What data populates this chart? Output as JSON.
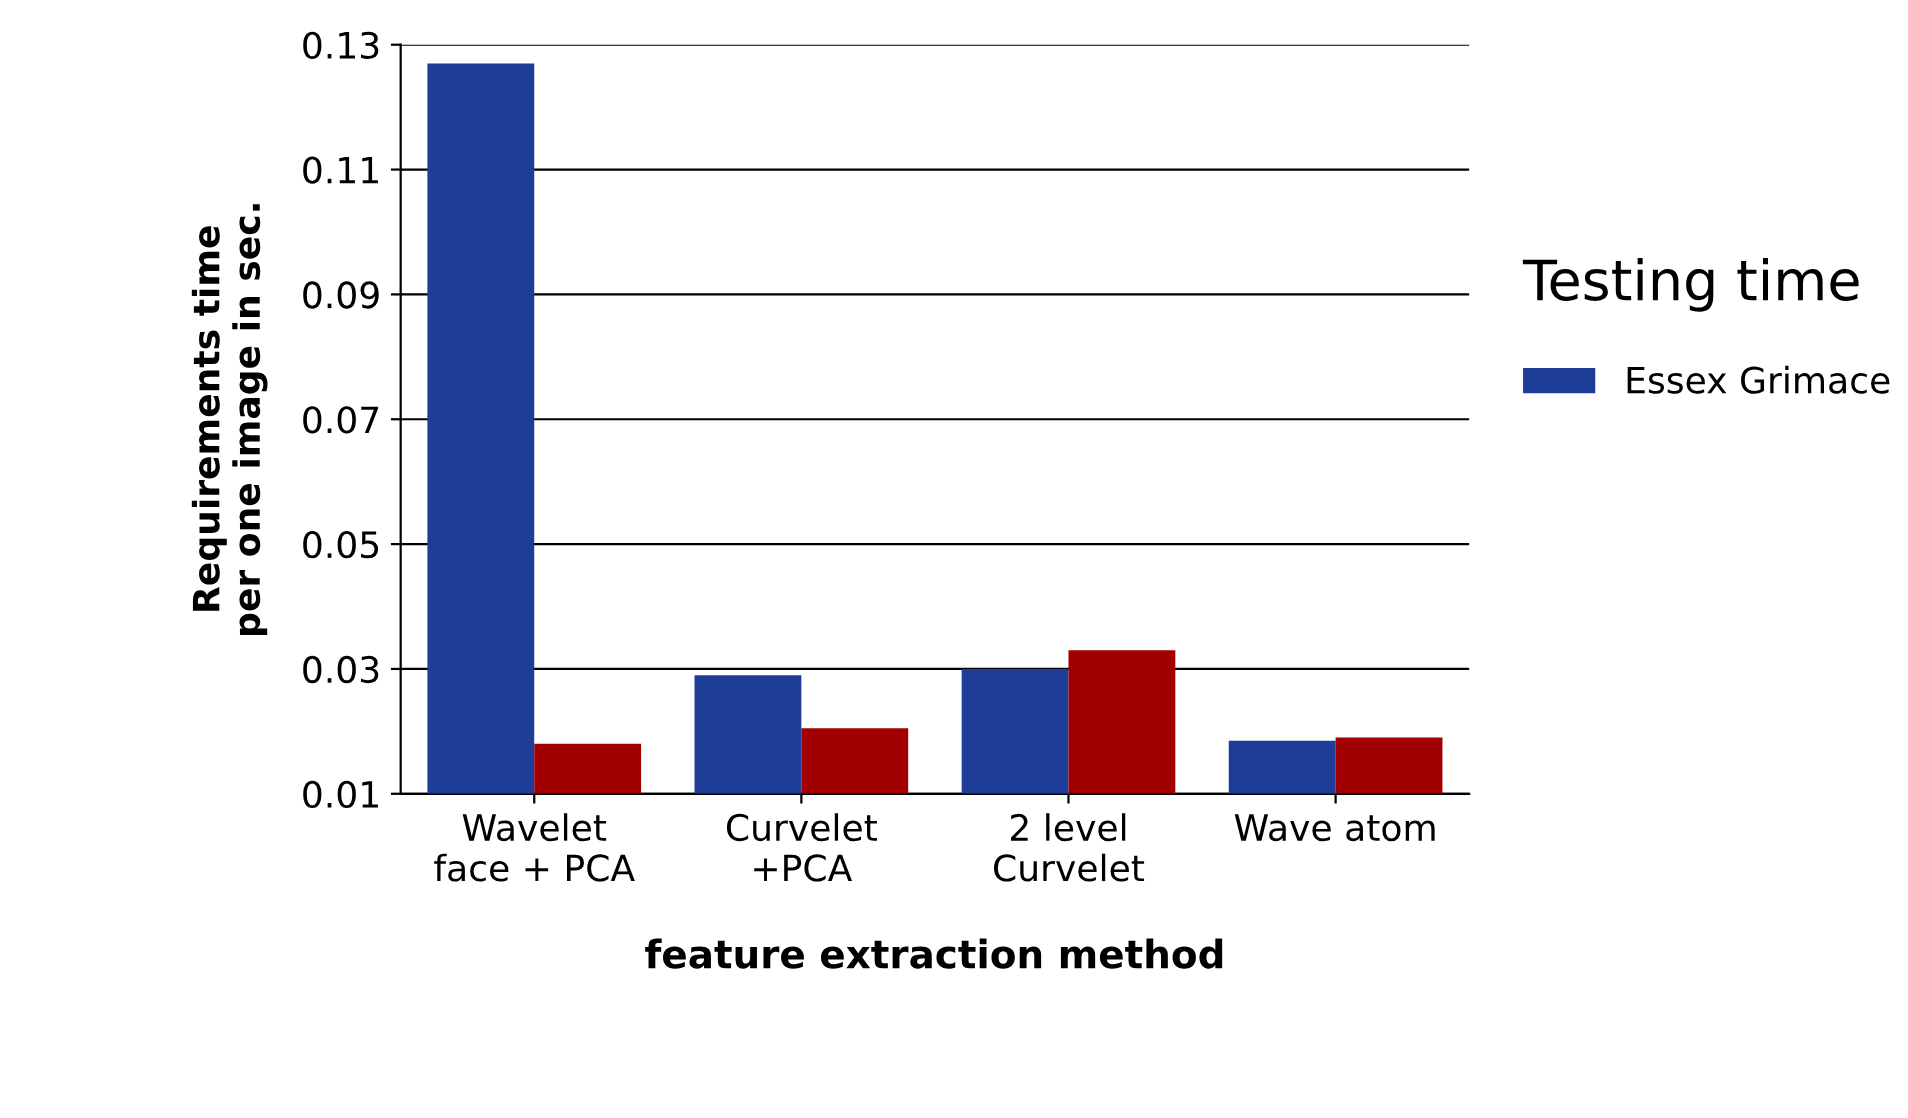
{
  "chart_data": {
    "type": "bar",
    "legend_title": "Testing time",
    "xlabel": "feature extraction method",
    "ylabel": "Requirements time\nper one image in sec.",
    "categories": [
      "Wavelet\nface + PCA",
      "Curvelet\n+PCA",
      "2 level\nCurvelet",
      "Wave atom"
    ],
    "series": [
      {
        "name": "Essex Grimace",
        "color": "#1f3c99",
        "values": [
          0.127,
          0.029,
          0.03,
          0.0185
        ]
      },
      {
        "color": "#a00000",
        "values": [
          0.018,
          0.0205,
          0.033,
          0.019
        ]
      }
    ],
    "ylim": [
      0.01,
      0.13
    ],
    "yticks": [
      0.01,
      0.03,
      0.05,
      0.07,
      0.09,
      0.11,
      0.13
    ],
    "grid": "y",
    "legend": "right"
  }
}
